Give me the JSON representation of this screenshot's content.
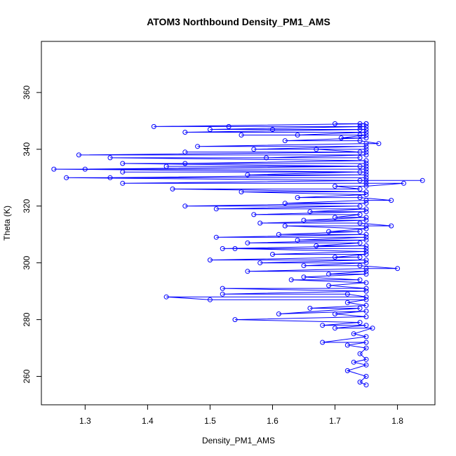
{
  "chart_data": {
    "type": "line",
    "title": "ATOM3 Northbound Density_PM1_AMS",
    "xlabel": "Density_PM1_AMS",
    "ylabel": "Theta (K)",
    "xlim": [
      1.23,
      1.86
    ],
    "ylim": [
      250,
      378
    ],
    "xticks": [
      1.3,
      1.4,
      1.5,
      1.6,
      1.7,
      1.8
    ],
    "xtick_labels": [
      "1.3",
      "1.4",
      "1.5",
      "1.6",
      "1.7",
      "1.8"
    ],
    "yticks": [
      260,
      280,
      300,
      320,
      340,
      360
    ],
    "ytick_labels": [
      "260",
      "280",
      "300",
      "320",
      "340",
      "360"
    ],
    "grid": false,
    "legend": "none",
    "color": "#0000ff",
    "markers": "open-circle",
    "series": [
      {
        "points": [
          [
            1.75,
            257
          ],
          [
            1.74,
            258
          ],
          [
            1.75,
            260
          ],
          [
            1.72,
            262
          ],
          [
            1.75,
            264
          ],
          [
            1.73,
            265
          ],
          [
            1.75,
            266
          ],
          [
            1.74,
            268
          ],
          [
            1.75,
            270
          ],
          [
            1.72,
            271
          ],
          [
            1.75,
            272
          ],
          [
            1.68,
            272
          ],
          [
            1.75,
            274
          ],
          [
            1.73,
            275
          ],
          [
            1.76,
            277
          ],
          [
            1.7,
            277
          ],
          [
            1.75,
            278
          ],
          [
            1.68,
            278
          ],
          [
            1.74,
            279
          ],
          [
            1.54,
            280
          ],
          [
            1.75,
            281
          ],
          [
            1.7,
            282
          ],
          [
            1.75,
            283
          ],
          [
            1.61,
            282
          ],
          [
            1.74,
            284
          ],
          [
            1.66,
            284
          ],
          [
            1.75,
            285
          ],
          [
            1.72,
            286
          ],
          [
            1.75,
            287
          ],
          [
            1.5,
            287
          ],
          [
            1.43,
            288
          ],
          [
            1.75,
            288
          ],
          [
            1.72,
            289
          ],
          [
            1.52,
            289
          ],
          [
            1.75,
            290
          ],
          [
            1.52,
            291
          ],
          [
            1.75,
            291
          ],
          [
            1.69,
            292
          ],
          [
            1.75,
            293
          ],
          [
            1.63,
            294
          ],
          [
            1.74,
            294
          ],
          [
            1.65,
            295
          ],
          [
            1.75,
            296
          ],
          [
            1.69,
            296
          ],
          [
            1.75,
            297
          ],
          [
            1.56,
            297
          ],
          [
            1.75,
            298
          ],
          [
            1.8,
            298
          ],
          [
            1.74,
            299
          ],
          [
            1.65,
            299
          ],
          [
            1.75,
            300
          ],
          [
            1.58,
            300
          ],
          [
            1.75,
            301
          ],
          [
            1.5,
            301
          ],
          [
            1.74,
            302
          ],
          [
            1.7,
            302
          ],
          [
            1.75,
            303
          ],
          [
            1.6,
            303
          ],
          [
            1.75,
            304
          ],
          [
            1.54,
            305
          ],
          [
            1.75,
            305
          ],
          [
            1.52,
            305
          ],
          [
            1.75,
            306
          ],
          [
            1.67,
            306
          ],
          [
            1.74,
            307
          ],
          [
            1.56,
            307
          ],
          [
            1.75,
            308
          ],
          [
            1.64,
            308
          ],
          [
            1.75,
            309
          ],
          [
            1.51,
            309
          ],
          [
            1.75,
            310
          ],
          [
            1.61,
            310
          ],
          [
            1.74,
            311
          ],
          [
            1.69,
            311
          ],
          [
            1.75,
            312
          ],
          [
            1.62,
            313
          ],
          [
            1.75,
            313
          ],
          [
            1.79,
            313
          ],
          [
            1.74,
            314
          ],
          [
            1.58,
            314
          ],
          [
            1.75,
            315
          ],
          [
            1.65,
            315
          ],
          [
            1.75,
            316
          ],
          [
            1.7,
            316
          ],
          [
            1.74,
            317
          ],
          [
            1.57,
            317
          ],
          [
            1.75,
            318
          ],
          [
            1.66,
            318
          ],
          [
            1.75,
            319
          ],
          [
            1.51,
            319
          ],
          [
            1.74,
            320
          ],
          [
            1.46,
            320
          ],
          [
            1.75,
            321
          ],
          [
            1.62,
            321
          ],
          [
            1.75,
            322
          ],
          [
            1.79,
            322
          ],
          [
            1.74,
            323
          ],
          [
            1.64,
            323
          ],
          [
            1.75,
            324
          ],
          [
            1.55,
            325
          ],
          [
            1.75,
            325
          ],
          [
            1.44,
            326
          ],
          [
            1.74,
            326
          ],
          [
            1.7,
            327
          ],
          [
            1.75,
            327
          ],
          [
            1.81,
            328
          ],
          [
            1.75,
            328
          ],
          [
            1.36,
            328
          ],
          [
            1.75,
            329
          ],
          [
            1.84,
            329
          ],
          [
            1.74,
            329
          ],
          [
            1.27,
            330
          ],
          [
            1.75,
            330
          ],
          [
            1.34,
            330
          ],
          [
            1.75,
            331
          ],
          [
            1.56,
            331
          ],
          [
            1.74,
            332
          ],
          [
            1.36,
            332
          ],
          [
            1.75,
            332
          ],
          [
            1.25,
            333
          ],
          [
            1.75,
            333
          ],
          [
            1.3,
            333
          ],
          [
            1.75,
            334
          ],
          [
            1.43,
            334
          ],
          [
            1.74,
            334
          ],
          [
            1.36,
            335
          ],
          [
            1.75,
            335
          ],
          [
            1.46,
            335
          ],
          [
            1.75,
            336
          ],
          [
            1.34,
            337
          ],
          [
            1.74,
            337
          ],
          [
            1.59,
            337
          ],
          [
            1.75,
            338
          ],
          [
            1.29,
            338
          ],
          [
            1.75,
            339
          ],
          [
            1.46,
            339
          ],
          [
            1.74,
            339
          ],
          [
            1.67,
            340
          ],
          [
            1.75,
            340
          ],
          [
            1.57,
            340
          ],
          [
            1.75,
            341
          ],
          [
            1.48,
            341
          ],
          [
            1.75,
            342
          ],
          [
            1.77,
            342
          ],
          [
            1.74,
            343
          ],
          [
            1.62,
            343
          ],
          [
            1.75,
            344
          ],
          [
            1.71,
            344
          ],
          [
            1.75,
            345
          ],
          [
            1.55,
            345
          ],
          [
            1.74,
            345
          ],
          [
            1.64,
            345
          ],
          [
            1.75,
            346
          ],
          [
            1.46,
            346
          ],
          [
            1.75,
            347
          ],
          [
            1.6,
            347
          ],
          [
            1.74,
            347
          ],
          [
            1.5,
            347
          ],
          [
            1.75,
            348
          ],
          [
            1.53,
            348
          ],
          [
            1.74,
            348
          ],
          [
            1.41,
            348
          ],
          [
            1.75,
            349
          ],
          [
            1.7,
            349
          ],
          [
            1.74,
            349
          ],
          [
            1.75,
            349
          ]
        ]
      }
    ]
  }
}
